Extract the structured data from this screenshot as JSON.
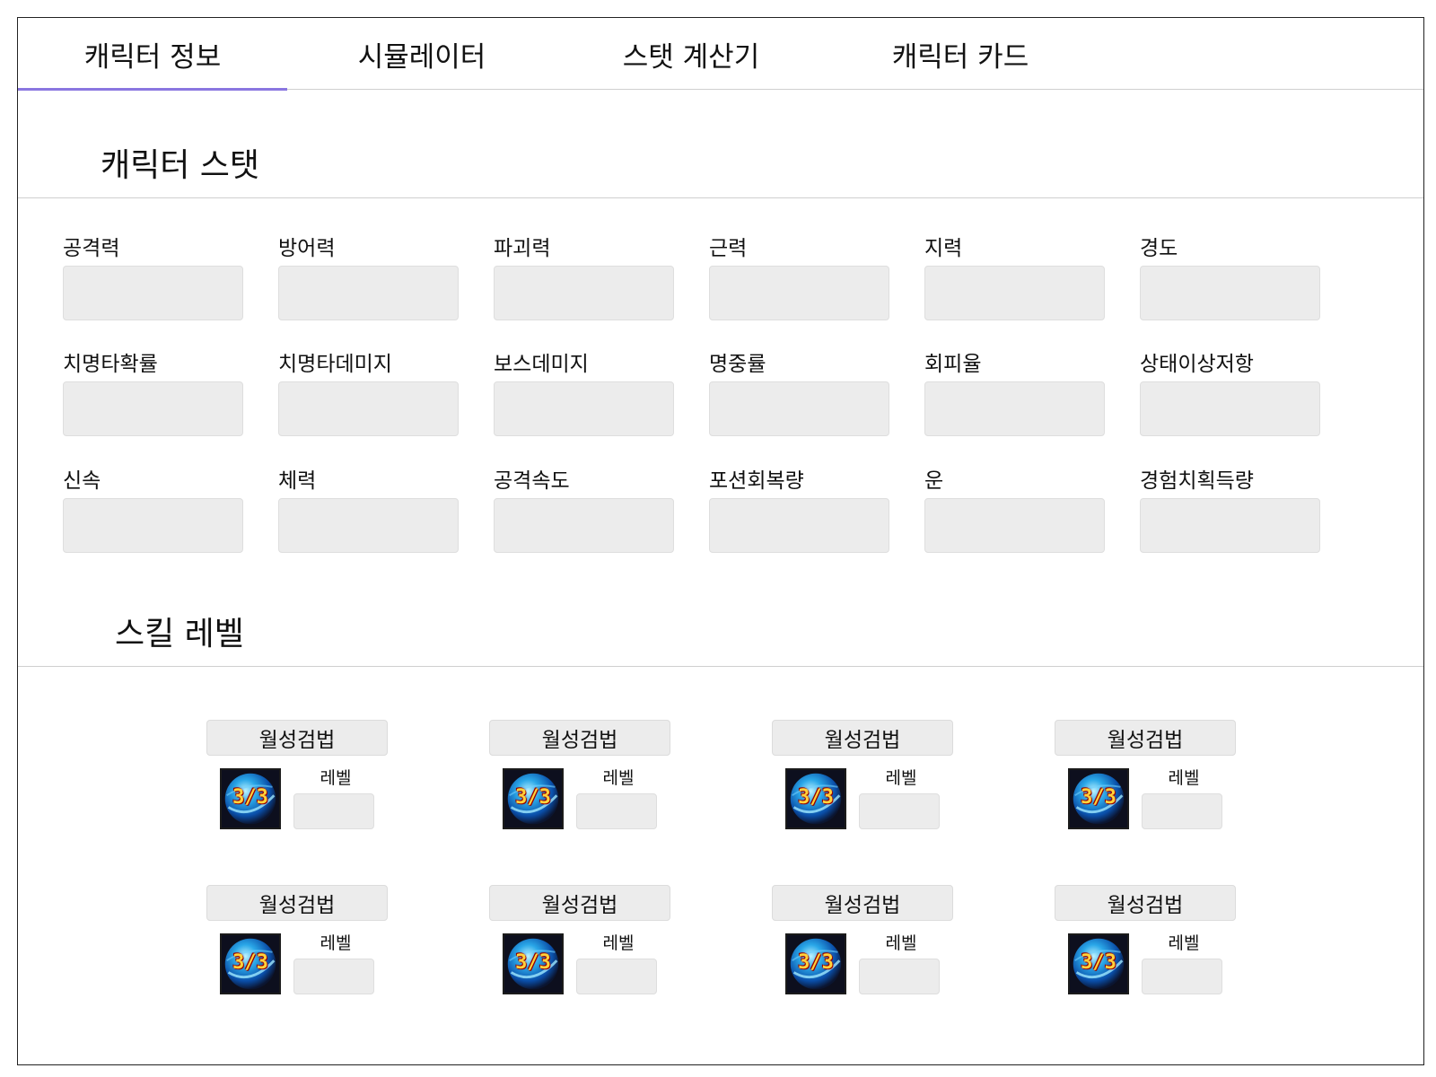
{
  "tabs": [
    {
      "label": "캐릭터 정보"
    },
    {
      "label": "시뮬레이터"
    },
    {
      "label": "스탯 계산기"
    },
    {
      "label": "캐릭터 카드"
    }
  ],
  "stats_section": {
    "title": "캐릭터 스탯",
    "stats": [
      {
        "label": "공격력",
        "value": ""
      },
      {
        "label": "방어력",
        "value": ""
      },
      {
        "label": "파괴력",
        "value": ""
      },
      {
        "label": "근력",
        "value": ""
      },
      {
        "label": "지력",
        "value": ""
      },
      {
        "label": "경도",
        "value": ""
      },
      {
        "label": "치명타확률",
        "value": ""
      },
      {
        "label": "치명타데미지",
        "value": ""
      },
      {
        "label": "보스데미지",
        "value": ""
      },
      {
        "label": "명중률",
        "value": ""
      },
      {
        "label": "회피율",
        "value": ""
      },
      {
        "label": "상태이상저항",
        "value": ""
      },
      {
        "label": "신속",
        "value": ""
      },
      {
        "label": "체력",
        "value": ""
      },
      {
        "label": "공격속도",
        "value": ""
      },
      {
        "label": "포션회복량",
        "value": ""
      },
      {
        "label": "운",
        "value": ""
      },
      {
        "label": "경험치획득량",
        "value": ""
      }
    ]
  },
  "skills_section": {
    "title": "스킬 레벨",
    "skills": [
      {
        "name": "월성검법",
        "level_label": "레벨",
        "icon_text": "3/3",
        "icon": "skill-orb-icon"
      },
      {
        "name": "월성검법",
        "level_label": "레벨",
        "icon_text": "3/3",
        "icon": "skill-orb-icon"
      },
      {
        "name": "월성검법",
        "level_label": "레벨",
        "icon_text": "3/3",
        "icon": "skill-orb-icon"
      },
      {
        "name": "월성검법",
        "level_label": "레벨",
        "icon_text": "3/3",
        "icon": "skill-orb-icon"
      },
      {
        "name": "월성검법",
        "level_label": "레벨",
        "icon_text": "3/3",
        "icon": "skill-orb-icon"
      },
      {
        "name": "월성검법",
        "level_label": "레벨",
        "icon_text": "3/3",
        "icon": "skill-orb-icon"
      },
      {
        "name": "월성검법",
        "level_label": "레벨",
        "icon_text": "3/3",
        "icon": "skill-orb-icon"
      },
      {
        "name": "월성검법",
        "level_label": "레벨",
        "icon_text": "3/3",
        "icon": "skill-orb-icon"
      }
    ]
  },
  "colors": {
    "tab_indicator": "#8a76e0",
    "input_bg": "#ececec",
    "divider": "#cfcfcf"
  }
}
